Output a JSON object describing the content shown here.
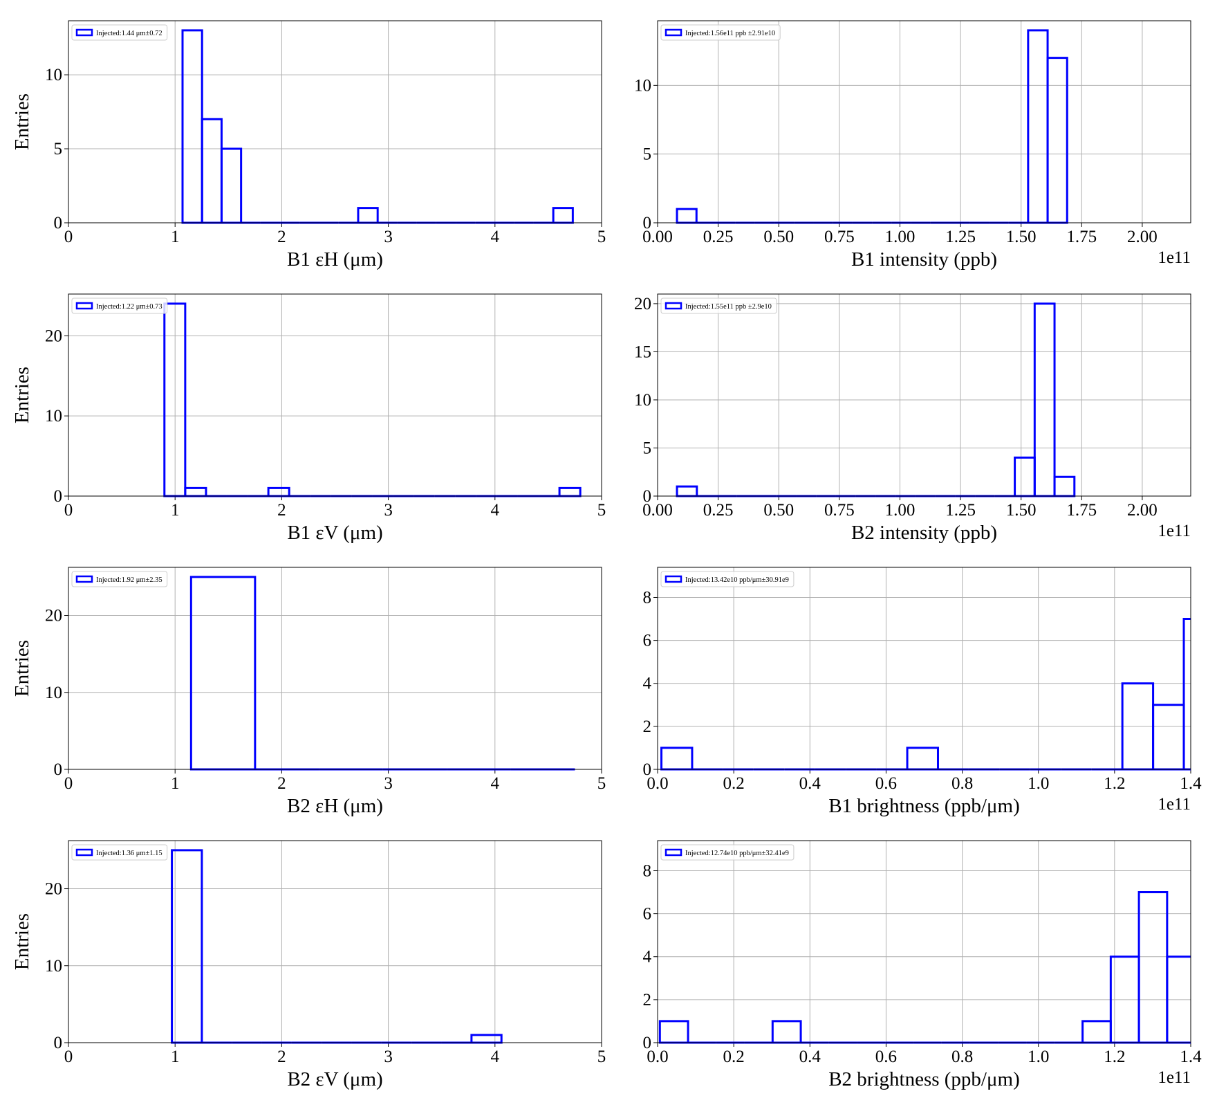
{
  "chart_data": [
    {
      "type": "histogram",
      "name": "Injected:1.44 μm±0.72",
      "color": "#0000ff",
      "xlabel": "B1 εH (μm)",
      "ylabel": "Entries",
      "bins": [
        1.07,
        1.253,
        1.436,
        1.619,
        1.802,
        1.985,
        2.168,
        2.351,
        2.534,
        2.717,
        2.9,
        3.083,
        3.266,
        3.449,
        3.632,
        3.815,
        3.998,
        4.181,
        4.364,
        4.547,
        4.73
      ],
      "counts": [
        13,
        7,
        5,
        0,
        0,
        0,
        0,
        0,
        0,
        1,
        0,
        0,
        0,
        0,
        0,
        0,
        0,
        0,
        0,
        1
      ],
      "xlim": [
        0,
        5
      ],
      "xticks": [
        0,
        1,
        2,
        3,
        4,
        5
      ],
      "ylim": [
        0,
        13.65
      ],
      "yticks": [
        0,
        5,
        10
      ],
      "grid": true,
      "legend": "upper left"
    },
    {
      "type": "histogram",
      "name": "Injected:1.56e11 ppb ±2.91e10",
      "color": "#0000ff",
      "xlabel": "B1 intensity (ppb)",
      "offset": "1e11",
      "bins": [
        0.08,
        0.1605,
        0.241,
        0.3215,
        0.402,
        0.4825,
        0.563,
        0.6435,
        0.724,
        0.8045,
        0.885,
        0.9655,
        1.046,
        1.1265,
        1.207,
        1.2875,
        1.368,
        1.4485,
        1.529,
        1.6095,
        1.69
      ],
      "counts": [
        1,
        0,
        0,
        0,
        0,
        0,
        0,
        0,
        0,
        0,
        0,
        0,
        0,
        0,
        0,
        0,
        0,
        0,
        14,
        12
      ],
      "xlim": [
        0,
        2.2
      ],
      "xticks": [
        {
          "value": 0,
          "label": "0.00"
        },
        {
          "value": 0.25,
          "label": "0.25"
        },
        {
          "value": 0.5,
          "label": "0.50"
        },
        {
          "value": 0.75,
          "label": "0.75"
        },
        {
          "value": 1,
          "label": "1.00"
        },
        {
          "value": 1.25,
          "label": "1.25"
        },
        {
          "value": 1.5,
          "label": "1.50"
        },
        {
          "value": 1.75,
          "label": "1.75"
        },
        {
          "value": 2,
          "label": "2.00"
        }
      ],
      "ylim": [
        0,
        14.7
      ],
      "yticks": [
        0,
        5,
        10
      ],
      "grid": true,
      "legend": "upper left"
    },
    {
      "type": "histogram",
      "name": "Injected:1.22 μm±0.73",
      "color": "#0000ff",
      "xlabel": "B1 εV (μm)",
      "ylabel": "Entries",
      "bins": [
        0.9,
        1.095,
        1.29,
        1.485,
        1.68,
        1.875,
        2.07,
        2.265,
        2.46,
        2.655,
        2.85,
        3.045,
        3.24,
        3.435,
        3.63,
        3.825,
        4.02,
        4.215,
        4.41,
        4.605,
        4.8
      ],
      "counts": [
        24,
        1,
        0,
        0,
        0,
        1,
        0,
        0,
        0,
        0,
        0,
        0,
        0,
        0,
        0,
        0,
        0,
        0,
        0,
        1
      ],
      "xlim": [
        0,
        5
      ],
      "xticks": [
        0,
        1,
        2,
        3,
        4,
        5
      ],
      "ylim": [
        0,
        25.2
      ],
      "yticks": [
        0,
        10,
        20
      ],
      "grid": true,
      "legend": "upper left"
    },
    {
      "type": "histogram",
      "name": "Injected:1.55e11 ppb ±2.9e10",
      "color": "#0000ff",
      "xlabel": "B2 intensity (ppb)",
      "offset": "1e11",
      "bins": [
        0.08,
        0.162,
        0.244,
        0.326,
        0.408,
        0.49,
        0.572,
        0.654,
        0.736,
        0.818,
        0.9,
        0.982,
        1.064,
        1.146,
        1.228,
        1.31,
        1.392,
        1.474,
        1.556,
        1.638,
        1.72
      ],
      "counts": [
        1,
        0,
        0,
        0,
        0,
        0,
        0,
        0,
        0,
        0,
        0,
        0,
        0,
        0,
        0,
        0,
        0,
        4,
        20,
        2
      ],
      "xlim": [
        0,
        2.2
      ],
      "xticks": [
        {
          "value": 0,
          "label": "0.00"
        },
        {
          "value": 0.25,
          "label": "0.25"
        },
        {
          "value": 0.5,
          "label": "0.50"
        },
        {
          "value": 0.75,
          "label": "0.75"
        },
        {
          "value": 1,
          "label": "1.00"
        },
        {
          "value": 1.25,
          "label": "1.25"
        },
        {
          "value": 1.5,
          "label": "1.50"
        },
        {
          "value": 1.75,
          "label": "1.75"
        },
        {
          "value": 2,
          "label": "2.00"
        }
      ],
      "ylim": [
        0,
        21
      ],
      "yticks": [
        0,
        5,
        10,
        15,
        20
      ],
      "grid": true,
      "legend": "upper left"
    },
    {
      "type": "histogram",
      "name": "Injected:1.92 μm±2.35",
      "color": "#0000ff",
      "xlabel": "B2 εH (μm)",
      "ylabel": "Entries",
      "bins": [
        1.15,
        1.75,
        2.35,
        2.95,
        3.55,
        4.15,
        4.75
      ],
      "counts": [
        25,
        0,
        0,
        0,
        0,
        0
      ],
      "xlim": [
        0,
        5
      ],
      "xticks": [
        0,
        1,
        2,
        3,
        4,
        5
      ],
      "ylim": [
        0,
        26.25
      ],
      "yticks": [
        0,
        10,
        20
      ],
      "grid": true,
      "legend": "upper left"
    },
    {
      "type": "histogram",
      "name": "Injected:13.42e10 ppb/μm±30.91e9",
      "color": "#0000ff",
      "xlabel": "B1 brightness (ppb/μm)",
      "offset": "1e11",
      "bins": [
        0.01,
        0.0907,
        0.1714,
        0.2521,
        0.3328,
        0.4135,
        0.4942,
        0.5749,
        0.6556,
        0.7363,
        0.817,
        0.8977,
        0.9784,
        1.0591,
        1.1398,
        1.2205,
        1.3012,
        1.3819,
        1.4626
      ],
      "counts": [
        1,
        0,
        0,
        0,
        0,
        0,
        0,
        0,
        1,
        0,
        0,
        0,
        0,
        0,
        0,
        4,
        3,
        7
      ],
      "xlim": [
        0,
        1.4
      ],
      "xticks": [
        {
          "value": 0,
          "label": "0.0"
        },
        0.2,
        0.4,
        0.6,
        0.8,
        {
          "value": 1,
          "label": "1.0"
        },
        1.2,
        1.4
      ],
      "ylim": [
        0,
        9.4
      ],
      "yticks": [
        0,
        2,
        4,
        6,
        8
      ],
      "grid": true,
      "legend": "upper left"
    },
    {
      "type": "histogram",
      "name": "Injected:1.36 μm±1.15",
      "color": "#0000ff",
      "xlabel": "B2 εV (μm)",
      "ylabel": "Entries",
      "bins": [
        0.97,
        1.251,
        1.532,
        1.813,
        2.094,
        2.375,
        2.656,
        2.937,
        3.218,
        3.499,
        3.78,
        4.061
      ],
      "counts": [
        25,
        0,
        0,
        0,
        0,
        0,
        0,
        0,
        0,
        0,
        1
      ],
      "xlim": [
        0,
        5
      ],
      "xticks": [
        0,
        1,
        2,
        3,
        4,
        5
      ],
      "ylim": [
        0,
        26.25
      ],
      "yticks": [
        0,
        10,
        20
      ],
      "grid": true,
      "legend": "upper left"
    },
    {
      "type": "histogram",
      "name": "Injected:12.74e10 ppb/μm±32.41e9",
      "color": "#0000ff",
      "xlabel": "B2 brightness (ppb/μm)",
      "offset": "1e11",
      "bins": [
        0.006,
        0.08,
        0.154,
        0.228,
        0.302,
        0.376,
        0.45,
        0.524,
        0.598,
        0.672,
        0.746,
        0.82,
        0.894,
        0.968,
        1.042,
        1.116,
        1.19,
        1.264,
        1.338,
        1.412
      ],
      "counts": [
        1,
        0,
        0,
        0,
        1,
        0,
        0,
        0,
        0,
        0,
        0,
        0,
        0,
        0,
        0,
        1,
        4,
        7,
        4
      ],
      "xlim": [
        0,
        1.4
      ],
      "xticks": [
        {
          "value": 0,
          "label": "0.0"
        },
        0.2,
        0.4,
        0.6,
        0.8,
        {
          "value": 1,
          "label": "1.0"
        },
        1.2,
        1.4
      ],
      "ylim": [
        0,
        9.4
      ],
      "yticks": [
        0,
        2,
        4,
        6,
        8
      ],
      "grid": true,
      "legend": "upper left"
    }
  ]
}
